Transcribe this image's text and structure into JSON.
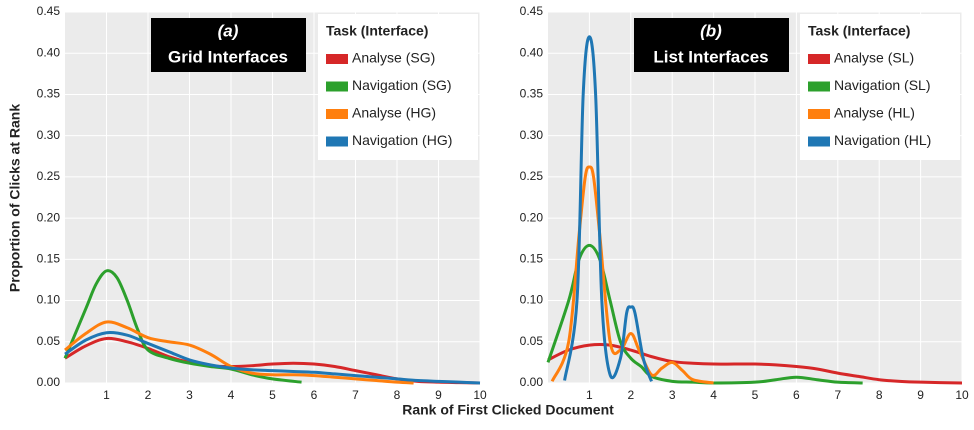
{
  "xlabel": "Rank of First Clicked Document",
  "ylabel": "Proportion of Clicks at Rank",
  "chart_data": [
    {
      "type": "line",
      "panel_label": "(a)",
      "panel_title": "Grid Interfaces",
      "legend_title": "Task (Interface)",
      "legend": "upper right",
      "grid": true,
      "xlim": [
        0,
        10
      ],
      "xticks": [
        1,
        2,
        3,
        4,
        5,
        6,
        7,
        8,
        9,
        10
      ],
      "ylim": [
        0,
        0.45
      ],
      "yticks": [
        {
          "value": 0,
          "label": "0.00"
        },
        {
          "value": 0.05,
          "label": "0.05"
        },
        {
          "value": 0.1,
          "label": "0.10"
        },
        {
          "value": 0.15,
          "label": "0.15"
        },
        {
          "value": 0.2,
          "label": "0.20"
        },
        {
          "value": 0.25,
          "label": "0.25"
        },
        {
          "value": 0.3,
          "label": "0.30"
        },
        {
          "value": 0.35,
          "label": "0.35"
        },
        {
          "value": 0.4,
          "label": "0.40"
        },
        {
          "value": 0.45,
          "label": "0.45"
        }
      ],
      "series": [
        {
          "name": "Analyse (SG)",
          "color": "#d62728",
          "x": [
            0,
            0.5,
            1,
            1.5,
            2,
            2.5,
            3,
            3.5,
            4,
            4.5,
            5,
            5.5,
            6,
            6.5,
            7,
            7.5,
            8,
            8.5,
            9,
            9.5,
            10
          ],
          "values": [
            0.03,
            0.045,
            0.054,
            0.05,
            0.042,
            0.032,
            0.025,
            0.021,
            0.02,
            0.021,
            0.023,
            0.024,
            0.023,
            0.02,
            0.015,
            0.01,
            0.005,
            0.002,
            0.001,
            0.0005,
            0
          ]
        },
        {
          "name": "Navigation (SG)",
          "color": "#2ca02c",
          "x": [
            0,
            0.5,
            0.75,
            1,
            1.25,
            1.5,
            1.75,
            2,
            2.5,
            3,
            3.5,
            4,
            4.5,
            5,
            5.7
          ],
          "values": [
            0.03,
            0.09,
            0.12,
            0.136,
            0.128,
            0.1,
            0.065,
            0.04,
            0.03,
            0.024,
            0.02,
            0.017,
            0.01,
            0.005,
            0.001
          ]
        },
        {
          "name": "Analyse (HG)",
          "color": "#ff7f0e",
          "x": [
            0,
            0.5,
            1,
            1.5,
            2,
            2.5,
            3,
            3.5,
            4,
            4.5,
            5,
            5.5,
            6,
            6.5,
            7,
            7.5,
            8,
            8.4
          ],
          "values": [
            0.04,
            0.06,
            0.074,
            0.067,
            0.055,
            0.05,
            0.046,
            0.035,
            0.02,
            0.012,
            0.01,
            0.01,
            0.009,
            0.007,
            0.005,
            0.003,
            0.001,
            0
          ]
        },
        {
          "name": "Navigation (HG)",
          "color": "#1f77b4",
          "x": [
            0,
            0.5,
            1,
            1.5,
            2,
            2.5,
            3,
            3.5,
            4,
            4.5,
            5,
            5.5,
            6,
            6.5,
            7,
            7.5,
            8,
            8.5,
            9,
            9.5,
            10
          ],
          "values": [
            0.035,
            0.052,
            0.061,
            0.058,
            0.048,
            0.038,
            0.028,
            0.022,
            0.018,
            0.016,
            0.015,
            0.014,
            0.013,
            0.011,
            0.009,
            0.007,
            0.005,
            0.003,
            0.002,
            0.001,
            0
          ]
        }
      ]
    },
    {
      "type": "line",
      "panel_label": "(b)",
      "panel_title": "List Interfaces",
      "legend_title": "Task (Interface)",
      "legend": "upper right",
      "grid": true,
      "xlim": [
        0,
        10
      ],
      "xticks": [
        1,
        2,
        3,
        4,
        5,
        6,
        7,
        8,
        9,
        10
      ],
      "ylim": [
        0,
        0.45
      ],
      "yticks": [
        {
          "value": 0,
          "label": "0.00"
        },
        {
          "value": 0.05,
          "label": "0.05"
        },
        {
          "value": 0.1,
          "label": "0.10"
        },
        {
          "value": 0.15,
          "label": "0.15"
        },
        {
          "value": 0.2,
          "label": "0.20"
        },
        {
          "value": 0.25,
          "label": "0.25"
        },
        {
          "value": 0.3,
          "label": "0.30"
        },
        {
          "value": 0.35,
          "label": "0.35"
        },
        {
          "value": 0.4,
          "label": "0.40"
        },
        {
          "value": 0.45,
          "label": "0.45"
        }
      ],
      "series": [
        {
          "name": "Analyse (SL)",
          "color": "#d62728",
          "x": [
            0,
            0.5,
            1,
            1.5,
            2,
            2.5,
            3,
            3.5,
            4,
            4.5,
            5,
            5.5,
            6,
            6.5,
            7,
            7.5,
            8,
            8.5,
            9,
            10
          ],
          "values": [
            0.028,
            0.04,
            0.046,
            0.046,
            0.04,
            0.032,
            0.026,
            0.024,
            0.023,
            0.023,
            0.023,
            0.022,
            0.02,
            0.017,
            0.012,
            0.008,
            0.004,
            0.002,
            0.001,
            0
          ]
        },
        {
          "name": "Navigation (SL)",
          "color": "#2ca02c",
          "x": [
            0,
            0.5,
            0.75,
            1,
            1.25,
            1.5,
            1.75,
            2,
            2.25,
            2.5,
            3,
            3.5,
            4,
            5,
            5.5,
            6,
            6.5,
            7,
            7.6
          ],
          "values": [
            0.025,
            0.1,
            0.15,
            0.167,
            0.15,
            0.1,
            0.05,
            0.03,
            0.02,
            0.008,
            0.002,
            0.001,
            0,
            0.001,
            0.004,
            0.007,
            0.004,
            0.001,
            0
          ]
        },
        {
          "name": "Analyse (HL)",
          "color": "#ff7f0e",
          "x": [
            0.1,
            0.5,
            0.75,
            0.9,
            1,
            1.1,
            1.25,
            1.5,
            1.75,
            2,
            2.2,
            2.5,
            2.75,
            3,
            3.25,
            3.5,
            4
          ],
          "values": [
            0.002,
            0.05,
            0.18,
            0.25,
            0.262,
            0.25,
            0.18,
            0.05,
            0.04,
            0.06,
            0.04,
            0.01,
            0.018,
            0.025,
            0.015,
            0.004,
            0
          ]
        },
        {
          "name": "Navigation (HL)",
          "color": "#1f77b4",
          "x": [
            0.4,
            0.7,
            0.85,
            1,
            1.15,
            1.3,
            1.5,
            1.75,
            1.9,
            2,
            2.1,
            2.3,
            2.5
          ],
          "values": [
            0.003,
            0.1,
            0.35,
            0.42,
            0.35,
            0.1,
            0.01,
            0.03,
            0.085,
            0.092,
            0.085,
            0.03,
            0.002
          ]
        }
      ]
    }
  ]
}
